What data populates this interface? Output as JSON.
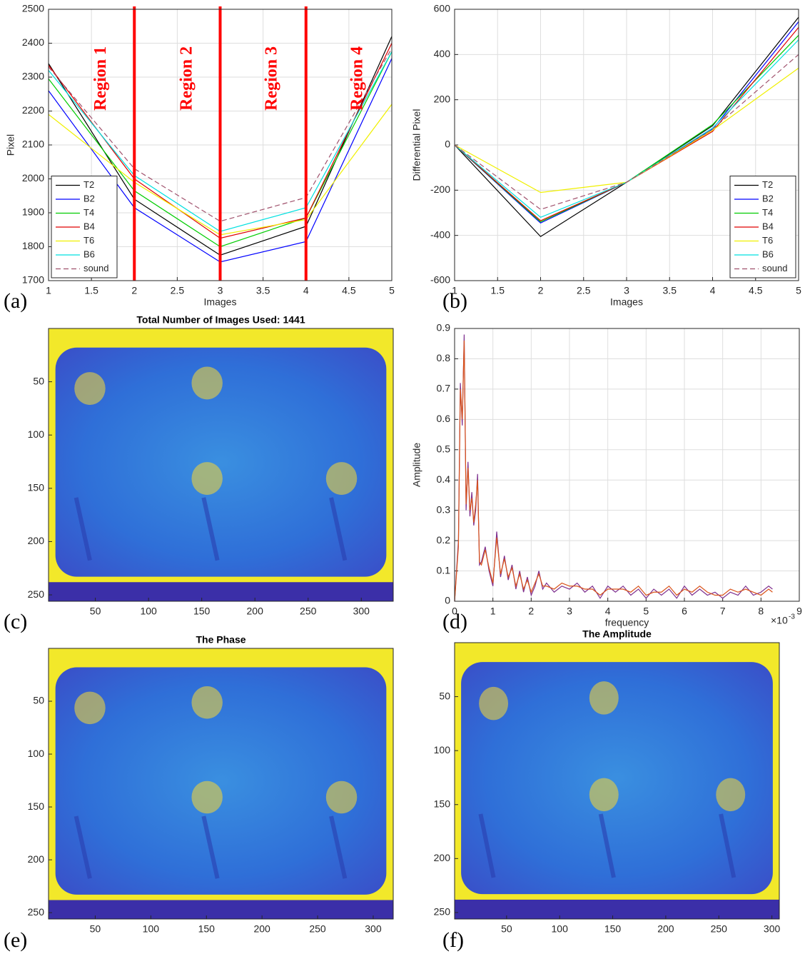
{
  "chart_data": [
    {
      "type": "line",
      "panel_label": "(a)",
      "xlabel": "Images",
      "ylabel": "Pixel",
      "x": [
        1,
        2,
        3,
        4,
        5
      ],
      "xlim": [
        1,
        5
      ],
      "xticks": [
        1,
        1.5,
        2,
        2.5,
        3,
        3.5,
        4,
        4.5,
        5
      ],
      "ylim": [
        1700,
        2500
      ],
      "yticks": [
        1700,
        1800,
        1900,
        2000,
        2100,
        2200,
        2300,
        2400,
        2500
      ],
      "grid": true,
      "legend": "lower left",
      "series": [
        {
          "name": "T2",
          "color": "#000000",
          "values": [
            2340,
            1940,
            1775,
            1860,
            2420
          ]
        },
        {
          "name": "B2",
          "color": "#0000ff",
          "values": [
            2260,
            1915,
            1755,
            1815,
            2355
          ]
        },
        {
          "name": "T4",
          "color": "#00cc00",
          "values": [
            2295,
            1965,
            1800,
            1885,
            2375
          ]
        },
        {
          "name": "B4",
          "color": "#e00000",
          "values": [
            2335,
            2000,
            1825,
            1885,
            2400
          ]
        },
        {
          "name": "T6",
          "color": "#f0f000",
          "values": [
            2190,
            1990,
            1835,
            1880,
            2220
          ]
        },
        {
          "name": "B6",
          "color": "#00e0e0",
          "values": [
            2320,
            2010,
            1845,
            1915,
            2375
          ]
        },
        {
          "name": "sound",
          "color": "#a0526d",
          "style": "dashed",
          "values": [
            2330,
            2030,
            1875,
            1945,
            2385
          ]
        }
      ],
      "vlines": {
        "x": [
          2,
          3,
          4
        ],
        "color": "#ff0000"
      },
      "annotations": [
        {
          "text": "Region 1",
          "x": 1.62,
          "y": 2296
        },
        {
          "text": "Region 2",
          "x": 2.62,
          "y": 2296
        },
        {
          "text": "Region 3",
          "x": 3.61,
          "y": 2296
        },
        {
          "text": "Region 4",
          "x": 4.61,
          "y": 2296
        }
      ]
    },
    {
      "type": "line",
      "panel_label": "(b)",
      "xlabel": "Images",
      "ylabel": "Differential Pixel",
      "x": [
        1,
        2,
        3,
        4,
        5
      ],
      "xlim": [
        1,
        5
      ],
      "xticks": [
        1,
        1.5,
        2,
        2.5,
        3,
        3.5,
        4,
        4.5,
        5
      ],
      "ylim": [
        -600,
        600
      ],
      "yticks": [
        -600,
        -400,
        -200,
        0,
        200,
        400,
        600
      ],
      "grid": true,
      "legend": "lower right",
      "series": [
        {
          "name": "T2",
          "color": "#000000",
          "values": [
            0,
            -405,
            -165,
            85,
            565
          ]
        },
        {
          "name": "B2",
          "color": "#0000ff",
          "values": [
            0,
            -345,
            -165,
            70,
            545
          ]
        },
        {
          "name": "T4",
          "color": "#00cc00",
          "values": [
            0,
            -340,
            -165,
            90,
            485
          ]
        },
        {
          "name": "B4",
          "color": "#e00000",
          "values": [
            0,
            -335,
            -165,
            60,
            520
          ]
        },
        {
          "name": "T6",
          "color": "#f0f000",
          "values": [
            0,
            -210,
            -165,
            65,
            340
          ]
        },
        {
          "name": "B6",
          "color": "#00e0e0",
          "values": [
            0,
            -320,
            -165,
            75,
            465
          ]
        },
        {
          "name": "sound",
          "color": "#a0526d",
          "style": "dashed",
          "values": [
            0,
            -285,
            -165,
            70,
            400
          ]
        }
      ]
    },
    {
      "type": "heatmap",
      "panel_label": "(c)",
      "title": "Total Number of Images Used: 1441",
      "xlim": [
        6,
        330
      ],
      "xticks": [
        50,
        100,
        150,
        200,
        250,
        300
      ],
      "ylim": [
        0,
        256
      ],
      "yticks": [
        50,
        100,
        150,
        200,
        250
      ],
      "y_reversed": true
    },
    {
      "type": "line",
      "panel_label": "(d)",
      "xlabel": "frequency",
      "ylabel": "Amplitude",
      "x_multiplier": {
        "base": "×10",
        "exponent": "-3"
      },
      "x": [
        0,
        0.1,
        0.15,
        0.2,
        0.25,
        0.3,
        0.35,
        0.4,
        0.45,
        0.5,
        0.55,
        0.6,
        0.65,
        0.7,
        0.8,
        0.9,
        1.0,
        1.1,
        1.2,
        1.3,
        1.4,
        1.5,
        1.6,
        1.7,
        1.8,
        1.9,
        2.0,
        2.1,
        2.2,
        2.3,
        2.4,
        2.6,
        2.8,
        3.0,
        3.2,
        3.4,
        3.6,
        3.8,
        4.0,
        4.2,
        4.4,
        4.6,
        4.8,
        5.0,
        5.2,
        5.4,
        5.6,
        5.8,
        6.0,
        6.2,
        6.4,
        6.6,
        6.8,
        7.0,
        7.2,
        7.4,
        7.6,
        7.8,
        8.0,
        8.2,
        8.3
      ],
      "xlim": [
        0,
        9
      ],
      "xticks": [
        0,
        1,
        2,
        3,
        4,
        5,
        6,
        7,
        8,
        9
      ],
      "ylim": [
        0,
        0.9
      ],
      "yticks": [
        0,
        0.1,
        0.2,
        0.3,
        0.4,
        0.5,
        0.6,
        0.7,
        0.8,
        0.9
      ],
      "grid": true,
      "series": [
        {
          "color": "#7e2f8e",
          "values": [
            0,
            0.2,
            0.72,
            0.58,
            0.88,
            0.3,
            0.46,
            0.28,
            0.36,
            0.25,
            0.3,
            0.42,
            0.12,
            0.13,
            0.18,
            0.1,
            0.05,
            0.23,
            0.08,
            0.15,
            0.07,
            0.12,
            0.04,
            0.1,
            0.03,
            0.08,
            0.02,
            0.05,
            0.1,
            0.04,
            0.06,
            0.03,
            0.05,
            0.04,
            0.06,
            0.03,
            0.05,
            0.01,
            0.05,
            0.03,
            0.05,
            0.02,
            0.04,
            0.01,
            0.04,
            0.02,
            0.04,
            0.01,
            0.05,
            0.02,
            0.04,
            0.02,
            0.03,
            0.01,
            0.03,
            0.02,
            0.05,
            0.02,
            0.03,
            0.05,
            0.04
          ]
        },
        {
          "color": "#d95319",
          "values": [
            0.0,
            0.18,
            0.7,
            0.6,
            0.86,
            0.32,
            0.44,
            0.3,
            0.34,
            0.26,
            0.32,
            0.4,
            0.13,
            0.12,
            0.17,
            0.11,
            0.06,
            0.21,
            0.09,
            0.14,
            0.08,
            0.11,
            0.05,
            0.09,
            0.04,
            0.07,
            0.03,
            0.06,
            0.09,
            0.05,
            0.05,
            0.04,
            0.06,
            0.05,
            0.05,
            0.04,
            0.04,
            0.02,
            0.04,
            0.04,
            0.04,
            0.03,
            0.05,
            0.02,
            0.03,
            0.03,
            0.05,
            0.02,
            0.04,
            0.03,
            0.05,
            0.03,
            0.02,
            0.02,
            0.04,
            0.03,
            0.04,
            0.03,
            0.02,
            0.04,
            0.03
          ]
        }
      ]
    },
    {
      "type": "heatmap",
      "panel_label": "(e)",
      "title": "The Phase",
      "xlim": [
        8,
        318
      ],
      "xticks": [
        50,
        100,
        150,
        200,
        250,
        300
      ],
      "ylim": [
        0,
        256
      ],
      "yticks": [
        50,
        100,
        150,
        200,
        250
      ],
      "y_reversed": true
    },
    {
      "type": "heatmap",
      "panel_label": "(f)",
      "title": "The Amplitude",
      "xlim": [
        1,
        307
      ],
      "xticks": [
        50,
        100,
        150,
        200,
        250,
        300
      ],
      "ylim": [
        0,
        256
      ],
      "yticks": [
        50,
        100,
        150,
        200,
        250
      ],
      "y_reversed": true
    }
  ]
}
